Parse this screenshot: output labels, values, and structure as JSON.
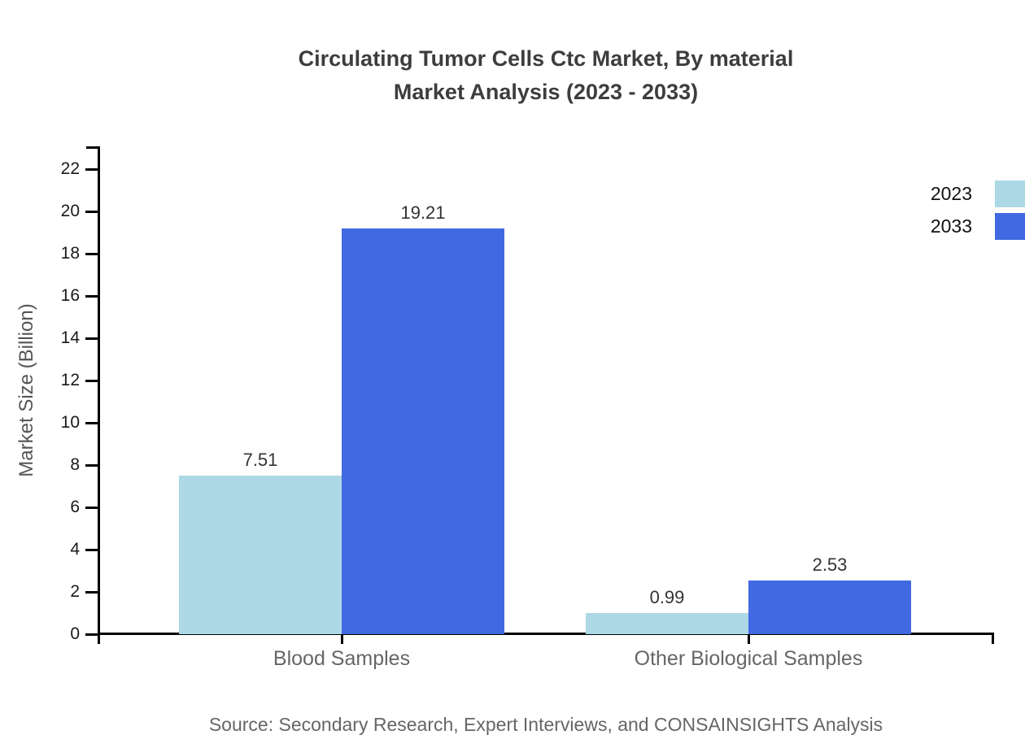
{
  "header": {
    "title_line1": "Circulating Tumor Cells Ctc Market, By material",
    "title_line2": "Market Analysis (2023 - 2033)"
  },
  "footer": {
    "source": "Source: Secondary Research, Expert Interviews, and CONSAINSIGHTS Analysis"
  },
  "chart_data": {
    "type": "bar",
    "title": "Circulating Tumor Cells Ctc Market, By material Market Analysis (2023 - 2033)",
    "categories": [
      "Blood Samples",
      "Other Biological Samples"
    ],
    "series": [
      {
        "name": "2023",
        "color": "#ADD8E6",
        "values": [
          7.51,
          0.99
        ]
      },
      {
        "name": "2033",
        "color": "#4169E1",
        "values": [
          19.21,
          2.53
        ]
      }
    ],
    "data_labels": [
      "7.51",
      "19.21",
      "0.99",
      "2.53"
    ],
    "xlabel": "",
    "ylabel": "Market Size (Billion)",
    "ylim": [
      0,
      23
    ],
    "yticks": [
      0,
      2,
      4,
      6,
      8,
      10,
      12,
      14,
      16,
      18,
      20,
      22
    ],
    "grid": false,
    "legend_position": "top-right",
    "axis_color": "#000000",
    "text_colors": {
      "title": "#3d3d3d",
      "tick_labels": "#1a1a1a",
      "category_labels": "#666666",
      "value_labels": "#333333",
      "source": "#666666",
      "y_axis_title": "#555555"
    }
  }
}
